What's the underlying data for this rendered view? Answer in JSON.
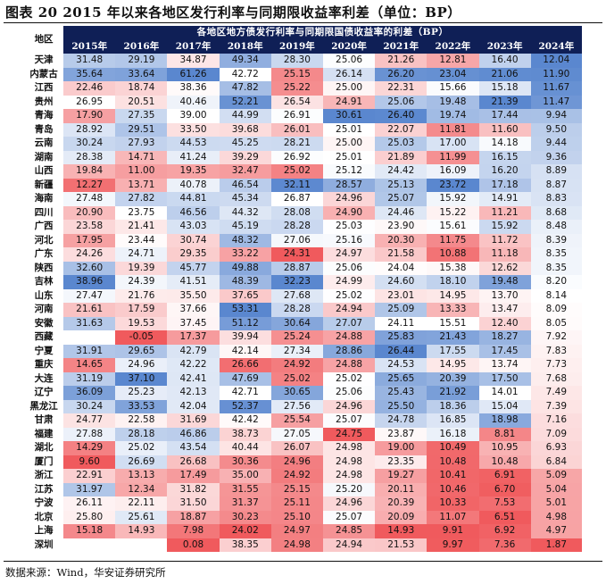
{
  "title": "图表 20 2015 年以来各地区发行利率与同期限收益率利差（单位：BP）",
  "table": {
    "corner_label": "地区",
    "caption": "各地区地方债发行利率与同期限国债收益率的利差（BP）",
    "years": [
      "2015年",
      "2016年",
      "2017年",
      "2018年",
      "2019年",
      "2020年",
      "2021年",
      "2022年",
      "2023年",
      "2024年"
    ],
    "rows": [
      {
        "region": "天津",
        "values": [
          "31.48",
          "29.19",
          "34.87",
          "49.34",
          "28.30",
          "25.06",
          "21.26",
          "12.81",
          "16.40",
          "12.04"
        ]
      },
      {
        "region": "内蒙古",
        "values": [
          "35.64",
          "33.64",
          "61.26",
          "42.72",
          "25.15",
          "26.14",
          "26.20",
          "23.04",
          "21.06",
          "11.90"
        ]
      },
      {
        "region": "江西",
        "values": [
          "22.46",
          "18.74",
          "38.36",
          "47.82",
          "25.22",
          "25.00",
          "22.31",
          "15.66",
          "15.18",
          "11.67"
        ]
      },
      {
        "region": "贵州",
        "values": [
          "26.95",
          "20.51",
          "40.46",
          "52.21",
          "26.54",
          "24.91",
          "25.06",
          "19.48",
          "21.39",
          "11.47"
        ]
      },
      {
        "region": "青海",
        "values": [
          "17.90",
          "27.35",
          "39.00",
          "44.99",
          "26.91",
          "30.61",
          "26.40",
          "19.74",
          "17.44",
          "9.94"
        ]
      },
      {
        "region": "青岛",
        "values": [
          "28.92",
          "29.51",
          "33.50",
          "39.68",
          "26.01",
          "25.01",
          "22.07",
          "11.81",
          "11.60",
          "9.50"
        ]
      },
      {
        "region": "云南",
        "values": [
          "30.24",
          "27.93",
          "44.53",
          "45.25",
          "28.21",
          "25.00",
          "25.03",
          "17.00",
          "14.18",
          "9.44"
        ]
      },
      {
        "region": "湖南",
        "values": [
          "28.38",
          "14.71",
          "41.24",
          "39.29",
          "26.92",
          "25.01",
          "21.89",
          "11.99",
          "16.15",
          "9.36"
        ]
      },
      {
        "region": "山西",
        "values": [
          "19.84",
          "11.00",
          "19.35",
          "32.47",
          "25.02",
          "25.12",
          "24.42",
          "16.09",
          "16.20",
          "8.89"
        ]
      },
      {
        "region": "新疆",
        "values": [
          "12.27",
          "13.71",
          "40.78",
          "46.54",
          "32.11",
          "28.57",
          "25.13",
          "23.72",
          "17.18",
          "8.87"
        ]
      },
      {
        "region": "海南",
        "values": [
          "27.48",
          "27.82",
          "44.81",
          "45.34",
          "26.87",
          "24.96",
          "25.07",
          "15.92",
          "14.91",
          "8.83"
        ]
      },
      {
        "region": "四川",
        "values": [
          "20.90",
          "23.75",
          "46.56",
          "44.32",
          "28.08",
          "24.90",
          "24.46",
          "15.22",
          "11.21",
          "8.68"
        ]
      },
      {
        "region": "广西",
        "values": [
          "23.58",
          "21.41",
          "43.03",
          "45.19",
          "28.28",
          "25.03",
          "23.90",
          "15.61",
          "15.92",
          "8.48"
        ]
      },
      {
        "region": "河北",
        "values": [
          "17.95",
          "23.44",
          "30.74",
          "48.32",
          "27.06",
          "25.16",
          "20.30",
          "11.75",
          "11.72",
          "8.39"
        ]
      },
      {
        "region": "广东",
        "values": [
          "24.26",
          "24.71",
          "29.35",
          "33.22",
          "24.31",
          "24.97",
          "21.58",
          "10.88",
          "11.18",
          "8.35"
        ]
      },
      {
        "region": "陕西",
        "values": [
          "32.60",
          "19.39",
          "45.77",
          "49.88",
          "28.87",
          "25.06",
          "24.04",
          "15.38",
          "12.62",
          "8.35"
        ]
      },
      {
        "region": "吉林",
        "values": [
          "38.96",
          "24.39",
          "41.51",
          "48.39",
          "32.23",
          "24.99",
          "24.60",
          "18.10",
          "19.48",
          "8.20"
        ]
      },
      {
        "region": "山东",
        "values": [
          "27.47",
          "21.76",
          "35.50",
          "37.65",
          "27.68",
          "25.02",
          "23.01",
          "14.95",
          "13.70",
          "8.14"
        ]
      },
      {
        "region": "河南",
        "values": [
          "21.61",
          "17.59",
          "37.66",
          "53.31",
          "28.28",
          "24.94",
          "25.09",
          "13.33",
          "13.47",
          "8.09"
        ]
      },
      {
        "region": "安徽",
        "values": [
          "31.63",
          "19.53",
          "37.45",
          "51.12",
          "30.64",
          "27.07",
          "24.11",
          "15.51",
          "12.40",
          "8.05"
        ]
      },
      {
        "region": "西藏",
        "values": [
          "",
          "-0.05",
          "17.37",
          "39.94",
          "25.24",
          "24.88",
          "25.83",
          "21.43",
          "18.27",
          "7.92"
        ]
      },
      {
        "region": "宁夏",
        "values": [
          "31.91",
          "29.65",
          "42.79",
          "42.14",
          "27.34",
          "28.86",
          "26.44",
          "17.55",
          "17.45",
          "7.83"
        ]
      },
      {
        "region": "重庆",
        "values": [
          "14.65",
          "24.96",
          "42.22",
          "26.66",
          "24.92",
          "24.88",
          "24.53",
          "14.95",
          "13.74",
          "7.73"
        ]
      },
      {
        "region": "大连",
        "values": [
          "31.19",
          "37.10",
          "42.41",
          "47.69",
          "25.02",
          "25.02",
          "25.65",
          "20.39",
          "17.50",
          "7.68"
        ]
      },
      {
        "region": "辽宁",
        "values": [
          "36.09",
          "25.23",
          "42.13",
          "42.71",
          "30.65",
          "25.06",
          "25.43",
          "21.92",
          "14.01",
          "7.49"
        ]
      },
      {
        "region": "黑龙江",
        "values": [
          "30.24",
          "33.53",
          "42.04",
          "52.37",
          "27.56",
          "24.96",
          "25.50",
          "18.36",
          "15.04",
          "7.39"
        ]
      },
      {
        "region": "甘肃",
        "values": [
          "24.77",
          "22.58",
          "31.69",
          "42.42",
          "25.54",
          "25.07",
          "24.78",
          "16.85",
          "18.98",
          "7.16"
        ]
      },
      {
        "region": "福建",
        "values": [
          "27.88",
          "28.18",
          "46.86",
          "38.73",
          "27.05",
          "24.75",
          "23.87",
          "16.18",
          "8.81",
          "7.09"
        ]
      },
      {
        "region": "湖北",
        "values": [
          "14.29",
          "25.02",
          "43.54",
          "40.44",
          "26.07",
          "24.98",
          "19.00",
          "10.49",
          "10.95",
          "6.93"
        ]
      },
      {
        "region": "厦门",
        "values": [
          "9.60",
          "26.69",
          "26.68",
          "30.36",
          "24.96",
          "24.98",
          "23.35",
          "10.48",
          "10.48",
          "6.84"
        ]
      },
      {
        "region": "浙江",
        "values": [
          "22.91",
          "13.13",
          "17.49",
          "35.00",
          "24.92",
          "24.98",
          "19.27",
          "10.41",
          "6.91",
          "5.09"
        ]
      },
      {
        "region": "江苏",
        "values": [
          "31.97",
          "12.34",
          "31.82",
          "31.55",
          "25.15",
          "25.20",
          "20.11",
          "10.46",
          "6.70",
          "5.04"
        ]
      },
      {
        "region": "宁波",
        "values": [
          "26.11",
          "22.11",
          "31.50",
          "31.37",
          "25.11",
          "24.96",
          "20.39",
          "10.33",
          "7.53",
          "5.01"
        ]
      },
      {
        "region": "北京",
        "values": [
          "25.80",
          "25.61",
          "18.87",
          "30.23",
          "25.10",
          "25.07",
          "20.09",
          "11.07",
          "6.51",
          "4.98"
        ]
      },
      {
        "region": "上海",
        "values": [
          "15.18",
          "14.93",
          "7.98",
          "24.02",
          "24.97",
          "24.85",
          "14.93",
          "9.91",
          "6.92",
          "4.97"
        ]
      },
      {
        "region": "深圳",
        "values": [
          "",
          "",
          "0.08",
          "38.35",
          "24.98",
          "24.94",
          "21.53",
          "9.97",
          "7.36",
          "1.87"
        ]
      }
    ]
  },
  "source_note": "数据来源：Wind，华安证券研究所",
  "colors": {
    "header_bg": "#0f1f56",
    "blue_strong": "#5a87cf",
    "white_mid": "#ffffff",
    "red_strong": "#f05a5d"
  }
}
